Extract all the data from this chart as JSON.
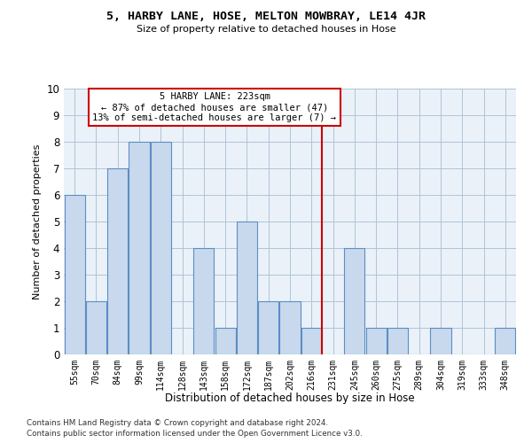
{
  "title1": "5, HARBY LANE, HOSE, MELTON MOWBRAY, LE14 4JR",
  "title2": "Size of property relative to detached houses in Hose",
  "xlabel": "Distribution of detached houses by size in Hose",
  "ylabel": "Number of detached properties",
  "categories": [
    "55sqm",
    "70sqm",
    "84sqm",
    "99sqm",
    "114sqm",
    "128sqm",
    "143sqm",
    "158sqm",
    "172sqm",
    "187sqm",
    "202sqm",
    "216sqm",
    "231sqm",
    "245sqm",
    "260sqm",
    "275sqm",
    "289sqm",
    "304sqm",
    "319sqm",
    "333sqm",
    "348sqm"
  ],
  "values": [
    6,
    2,
    7,
    8,
    8,
    0,
    4,
    1,
    5,
    2,
    2,
    1,
    0,
    4,
    1,
    1,
    0,
    1,
    0,
    0,
    1
  ],
  "bar_color": "#c8d9ed",
  "bar_edge_color": "#5b8ec4",
  "vline_index": 11.5,
  "vline_color": "#cc0000",
  "annotation_text": "5 HARBY LANE: 223sqm\n← 87% of detached houses are smaller (47)\n13% of semi-detached houses are larger (7) →",
  "annotation_box_color": "#ffffff",
  "annotation_border_color": "#cc0000",
  "ylim": [
    0,
    10
  ],
  "yticks": [
    0,
    1,
    2,
    3,
    4,
    5,
    6,
    7,
    8,
    9,
    10
  ],
  "footer1": "Contains HM Land Registry data © Crown copyright and database right 2024.",
  "footer2": "Contains public sector information licensed under the Open Government Licence v3.0.",
  "grid_color": "#b0c4d8",
  "background_color": "#eaf1f8"
}
